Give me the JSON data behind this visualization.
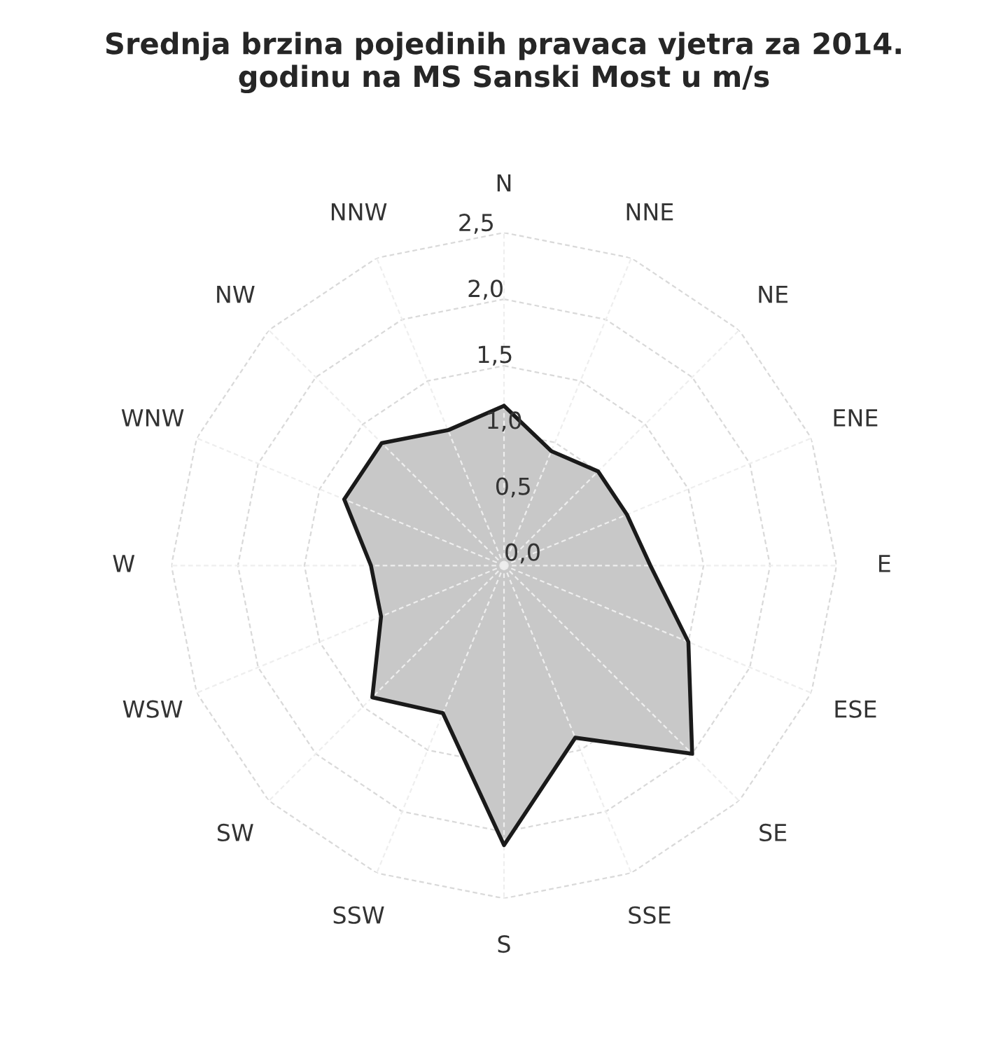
{
  "chart_data": {
    "type": "radar",
    "title": "Srednja brzina pojedinih pravaca vjetra za 2014.\ngodinu na MS Sanski Most u m/s",
    "categories": [
      "N",
      "NNE",
      "NE",
      "ENE",
      "E",
      "ESE",
      "SE",
      "SSE",
      "S",
      "SSW",
      "SW",
      "WSW",
      "W",
      "WNW",
      "NW",
      "NNW"
    ],
    "series": [
      {
        "color": "#c8c8c8",
        "values": [
          1.2,
          0.93,
          1.0,
          1.0,
          1.1,
          1.5,
          2.0,
          1.4,
          2.1,
          1.2,
          1.4,
          1.0,
          1.0,
          1.3,
          1.3,
          1.1
        ]
      }
    ],
    "ylim": [
      0,
      2.5
    ],
    "yticks": [
      {
        "value": 0,
        "label": "0,0"
      },
      {
        "value": 0.5,
        "label": "0,5"
      },
      {
        "value": 1,
        "label": "1,0"
      },
      {
        "value": 1.5,
        "label": "1,5"
      },
      {
        "value": 2,
        "label": "2,0"
      },
      {
        "value": 2.5,
        "label": "2,5"
      }
    ],
    "grid": true,
    "marker": "none",
    "line_style": "solid"
  }
}
